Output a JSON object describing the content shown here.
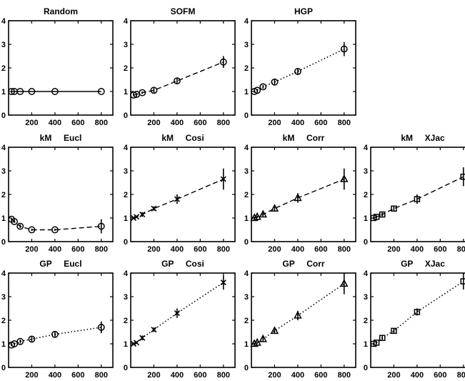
{
  "chart_data": [
    {
      "type": "line",
      "title": "Random",
      "style": "solid",
      "marker": "circle",
      "error_bars": false,
      "x": [
        25,
        50,
        100,
        200,
        400,
        800
      ],
      "y": [
        1,
        1,
        1,
        1,
        1,
        1
      ],
      "xlim": [
        0,
        900
      ],
      "ylim": [
        0,
        4
      ],
      "xticks": [
        "200",
        "400",
        "600",
        "800"
      ],
      "yticks": [
        "0",
        "1",
        "2",
        "3",
        "4"
      ]
    },
    {
      "type": "line",
      "title": "SOFM",
      "style": "dashed",
      "marker": "circle",
      "error_bars": true,
      "x": [
        25,
        50,
        100,
        200,
        400,
        800
      ],
      "y": [
        0.85,
        0.88,
        0.95,
        1.05,
        1.45,
        2.25
      ],
      "err": [
        0.05,
        0.05,
        0.05,
        0.1,
        0.12,
        0.25
      ],
      "xlim": [
        0,
        900
      ],
      "ylim": [
        0,
        4
      ],
      "xticks": [
        "200",
        "400",
        "600",
        "800"
      ],
      "yticks": [
        "0",
        "1",
        "2",
        "3",
        "4"
      ]
    },
    {
      "type": "line",
      "title": "HGP",
      "style": "dotted",
      "marker": "circle",
      "error_bars": true,
      "x": [
        25,
        50,
        100,
        200,
        400,
        800
      ],
      "y": [
        1.0,
        1.05,
        1.2,
        1.4,
        1.85,
        2.8
      ],
      "err": [
        0.05,
        0.05,
        0.08,
        0.1,
        0.12,
        0.3
      ],
      "xlim": [
        0,
        900
      ],
      "ylim": [
        0,
        4
      ],
      "xticks": [
        "200",
        "400",
        "600",
        "800"
      ],
      "yticks": [
        "0",
        "1",
        "2",
        "3",
        "4"
      ]
    },
    null,
    {
      "type": "line",
      "title": "kM     Eucl",
      "style": "dashed",
      "marker": "circle",
      "error_bars": true,
      "x": [
        25,
        50,
        100,
        200,
        400,
        800
      ],
      "y": [
        0.95,
        0.85,
        0.65,
        0.5,
        0.5,
        0.65
      ],
      "err": [
        0.05,
        0.05,
        0.08,
        0.05,
        0.05,
        0.3
      ],
      "xlim": [
        0,
        900
      ],
      "ylim": [
        0,
        4
      ],
      "xticks": [
        "200",
        "400",
        "600",
        "800"
      ],
      "yticks": [
        "0",
        "1",
        "2",
        "3",
        "4"
      ]
    },
    {
      "type": "line",
      "title": "kM     Cosi",
      "style": "dashed",
      "marker": "x",
      "error_bars": true,
      "x": [
        25,
        50,
        100,
        200,
        400,
        800
      ],
      "y": [
        1.0,
        1.05,
        1.15,
        1.4,
        1.8,
        2.65
      ],
      "err": [
        0.05,
        0.05,
        0.1,
        0.1,
        0.2,
        0.45
      ],
      "xlim": [
        0,
        900
      ],
      "ylim": [
        0,
        4
      ],
      "xticks": [
        "200",
        "400",
        "600",
        "800"
      ],
      "yticks": [
        "0",
        "1",
        "2",
        "3",
        "4"
      ]
    },
    {
      "type": "line",
      "title": "kM     Corr",
      "style": "dashed",
      "marker": "triangle",
      "error_bars": true,
      "x": [
        25,
        50,
        100,
        200,
        400,
        800
      ],
      "y": [
        1.0,
        1.05,
        1.15,
        1.4,
        1.85,
        2.65
      ],
      "err": [
        0.05,
        0.05,
        0.08,
        0.1,
        0.2,
        0.45
      ],
      "xlim": [
        0,
        900
      ],
      "ylim": [
        0,
        4
      ],
      "xticks": [
        "200",
        "400",
        "600",
        "800"
      ],
      "yticks": [
        "0",
        "1",
        "2",
        "3",
        "4"
      ]
    },
    {
      "type": "line",
      "title": "kM     XJac",
      "style": "dashed",
      "marker": "square",
      "error_bars": true,
      "x": [
        25,
        50,
        100,
        200,
        400,
        800
      ],
      "y": [
        1.0,
        1.05,
        1.15,
        1.4,
        1.8,
        2.75
      ],
      "err": [
        0.05,
        0.05,
        0.08,
        0.1,
        0.2,
        0.4
      ],
      "xlim": [
        0,
        900
      ],
      "ylim": [
        0,
        4
      ],
      "xticks": [
        "200",
        "400",
        "600",
        "800"
      ],
      "yticks": [
        "0",
        "1",
        "2",
        "3",
        "4"
      ]
    },
    {
      "type": "line",
      "title": "GP     Eucl",
      "style": "dotted",
      "marker": "circle",
      "error_bars": true,
      "x": [
        25,
        50,
        100,
        200,
        400,
        800
      ],
      "y": [
        0.95,
        1.0,
        1.1,
        1.2,
        1.4,
        1.7
      ],
      "err": [
        0.05,
        0.05,
        0.08,
        0.1,
        0.1,
        0.25
      ],
      "xlim": [
        0,
        900
      ],
      "ylim": [
        0,
        4
      ],
      "xticks": [
        "200",
        "400",
        "600",
        "800"
      ],
      "yticks": [
        "0",
        "1",
        "2",
        "3",
        "4"
      ]
    },
    {
      "type": "line",
      "title": "GP     Cosi",
      "style": "dotted",
      "marker": "x",
      "error_bars": true,
      "x": [
        25,
        50,
        100,
        200,
        400,
        800
      ],
      "y": [
        1.0,
        1.05,
        1.25,
        1.6,
        2.3,
        3.6
      ],
      "err": [
        0.05,
        0.05,
        0.1,
        0.1,
        0.2,
        0.3
      ],
      "xlim": [
        0,
        900
      ],
      "ylim": [
        0,
        4
      ],
      "xticks": [
        "200",
        "400",
        "600",
        "800"
      ],
      "yticks": [
        "0",
        "1",
        "2",
        "3",
        "4"
      ]
    },
    {
      "type": "line",
      "title": "GP     Corr",
      "style": "dotted",
      "marker": "triangle",
      "error_bars": true,
      "x": [
        25,
        50,
        100,
        200,
        400,
        800
      ],
      "y": [
        1.0,
        1.05,
        1.2,
        1.55,
        2.2,
        3.55
      ],
      "err": [
        0.05,
        0.05,
        0.1,
        0.1,
        0.2,
        0.45
      ],
      "xlim": [
        0,
        900
      ],
      "ylim": [
        0,
        4
      ],
      "xticks": [
        "200",
        "400",
        "600",
        "800"
      ],
      "yticks": [
        "0",
        "1",
        "2",
        "3",
        "4"
      ]
    },
    {
      "type": "line",
      "title": "GP     XJac",
      "style": "dotted",
      "marker": "square",
      "error_bars": true,
      "x": [
        25,
        50,
        100,
        200,
        400,
        800
      ],
      "y": [
        1.0,
        1.05,
        1.25,
        1.55,
        2.35,
        3.65
      ],
      "err": [
        0.05,
        0.05,
        0.08,
        0.1,
        0.15,
        0.35
      ],
      "xlim": [
        0,
        900
      ],
      "ylim": [
        0,
        4
      ],
      "xticks": [
        "200",
        "400",
        "600",
        "800"
      ],
      "yticks": [
        "0",
        "1",
        "2",
        "3",
        "4"
      ]
    }
  ]
}
